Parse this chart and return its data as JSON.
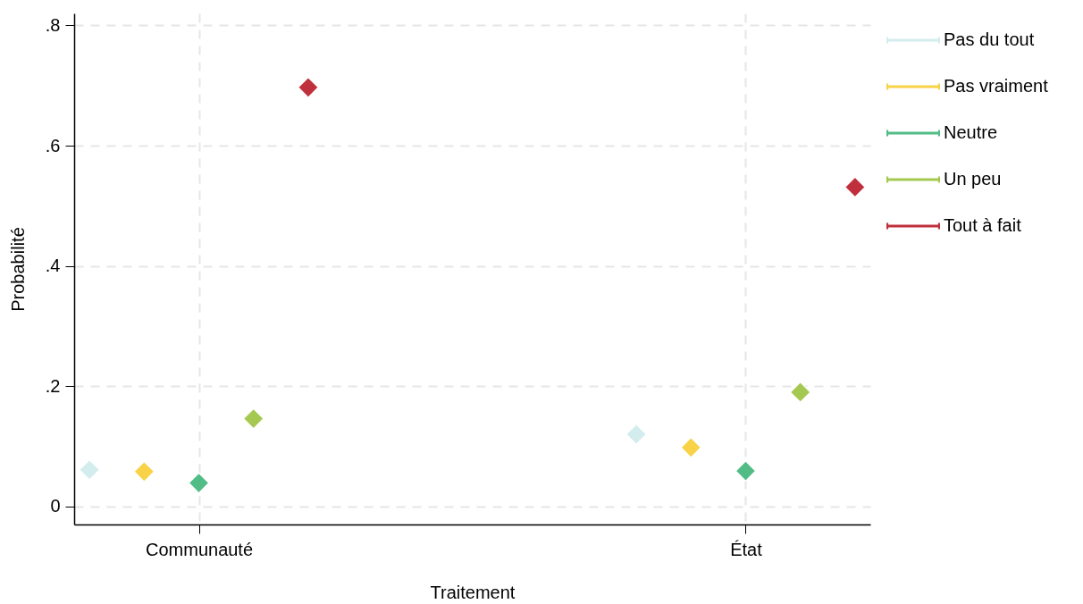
{
  "chart_data": {
    "type": "scatter",
    "xlabel": "Traitement",
    "ylabel": "Probabilité",
    "categories": [
      "Communauté",
      "État"
    ],
    "ylim": [
      -0.03,
      0.82
    ],
    "yticks": [
      {
        "value": 0,
        "label": "0"
      },
      {
        "value": 0.2,
        "label": ".2"
      },
      {
        "value": 0.4,
        "label": ".4"
      },
      {
        "value": 0.6,
        "label": ".6"
      },
      {
        "value": 0.8,
        "label": ".8"
      }
    ],
    "grid": true,
    "legend": "right",
    "marker": "diamond",
    "series": [
      {
        "name": "Pas du tout",
        "color": "#d3ecee",
        "values": [
          0.061,
          0.12
        ]
      },
      {
        "name": "Pas vraiment",
        "color": "#f8d247",
        "values": [
          0.058,
          0.098
        ]
      },
      {
        "name": "Neutre",
        "color": "#52bc86",
        "values": [
          0.039,
          0.059
        ]
      },
      {
        "name": "Un peu",
        "color": "#a5c851",
        "values": [
          0.146,
          0.19
        ]
      },
      {
        "name": "Tout à fait",
        "color": "#c0303c",
        "values": [
          0.697,
          0.531
        ]
      }
    ]
  }
}
